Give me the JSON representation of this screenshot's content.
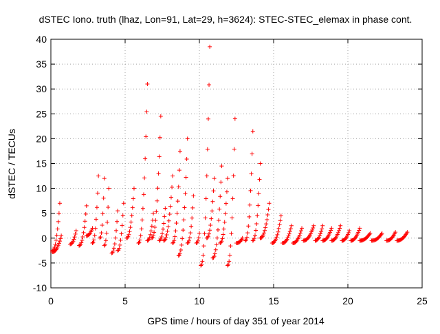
{
  "chart_data": {
    "type": "scatter",
    "title": "dSTEC Iono. truth (lhaz, Lon=91, Lat=29, h=3624): STEC-STEC_elemax in phase cont.",
    "xlabel": "GPS time / hours of day 351 of year 2014",
    "ylabel": "dSTEC  / TECUs",
    "xlim": [
      0,
      25
    ],
    "ylim": [
      -10,
      40
    ],
    "x_ticks": [
      0,
      5,
      10,
      15,
      20,
      25
    ],
    "x_tick_labels": [
      "0",
      "5",
      "10",
      "15",
      "20",
      "25"
    ],
    "y_ticks": [
      -10,
      -5,
      0,
      5,
      10,
      15,
      20,
      25,
      30,
      35,
      40
    ],
    "y_tick_labels": [
      "-10",
      "-5",
      "0",
      "5",
      "10",
      "15",
      "20",
      "25",
      "30",
      "35",
      "40"
    ],
    "grid": true,
    "marker": "plus",
    "marker_color": "#ff0000",
    "point_spacing_hours": 0.05,
    "series": [
      {
        "arcs": [
          {
            "x": [
              0.1,
              0.6
            ],
            "y": [
              -2.5,
              7
            ]
          },
          {
            "x": [
              0.1,
              0.7
            ],
            "y": [
              -2.8,
              0.5
            ]
          },
          {
            "x": [
              1.3,
              1.7
            ],
            "y": [
              -1.2,
              1.5
            ]
          },
          {
            "x": [
              1.9,
              2.4
            ],
            "y": [
              -1.5,
              6.5
            ]
          },
          {
            "x": [
              2.4,
              2.8
            ],
            "y": [
              0.5,
              2
            ]
          },
          {
            "x": [
              2.8,
              3.2
            ],
            "y": [
              -1,
              12.5
            ]
          },
          {
            "x": [
              3.3,
              3.6
            ],
            "y": [
              0,
              12
            ]
          },
          {
            "x": [
              3.6,
              3.9
            ],
            "y": [
              -1.5,
              10
            ]
          },
          {
            "x": [
              4.1,
              4.5
            ],
            "y": [
              -3,
              5.5
            ]
          },
          {
            "x": [
              4.5,
              4.9
            ],
            "y": [
              -2.5,
              7
            ]
          },
          {
            "x": [
              5.1,
              5.6
            ],
            "y": [
              0,
              10
            ]
          },
          {
            "x": [
              5.9,
              6.5
            ],
            "y": [
              -1,
              31
            ]
          },
          {
            "x": [
              6.5,
              6.9
            ],
            "y": [
              -0.5,
              5
            ]
          },
          {
            "x": [
              6.8,
              7.4
            ],
            "y": [
              0,
              24.5
            ]
          },
          {
            "x": [
              7.3,
              7.7
            ],
            "y": [
              -0.5,
              6
            ]
          },
          {
            "x": [
              7.6,
              8.2
            ],
            "y": [
              -0.5,
              12.5
            ]
          },
          {
            "x": [
              8.2,
              8.7
            ],
            "y": [
              -1,
              17.5
            ]
          },
          {
            "x": [
              8.6,
              9.2
            ],
            "y": [
              -3.5,
              20
            ]
          },
          {
            "x": [
              9.2,
              9.6
            ],
            "y": [
              -1,
              8.5
            ]
          },
          {
            "x": [
              9.8,
              10.0
            ],
            "y": [
              -1,
              1
            ]
          },
          {
            "x": [
              10.1,
              10.7
            ],
            "y": [
              -5.5,
              38.5
            ]
          },
          {
            "x": [
              10.5,
              11.0
            ],
            "y": [
              0,
              12
            ]
          },
          {
            "x": [
              10.9,
              11.5
            ],
            "y": [
              -4,
              14.5
            ]
          },
          {
            "x": [
              11.4,
              11.9
            ],
            "y": [
              -1,
              12
            ]
          },
          {
            "x": [
              11.9,
              12.4
            ],
            "y": [
              -5.5,
              24
            ]
          },
          {
            "x": [
              12.5,
              12.9
            ],
            "y": [
              -1,
              0
            ]
          },
          {
            "x": [
              13.1,
              13.6
            ],
            "y": [
              -0.5,
              21.5
            ]
          },
          {
            "x": [
              13.6,
              14.1
            ],
            "y": [
              -0.5,
              15
            ]
          },
          {
            "x": [
              14.1,
              14.7
            ],
            "y": [
              0,
              7
            ]
          },
          {
            "x": [
              14.9,
              15.5
            ],
            "y": [
              -1,
              4.5
            ]
          },
          {
            "x": [
              15.6,
              16.2
            ],
            "y": [
              -1,
              2.5
            ]
          },
          {
            "x": [
              16.3,
              16.9
            ],
            "y": [
              -1,
              2
            ]
          },
          {
            "x": [
              17.0,
              17.7
            ],
            "y": [
              -0.5,
              2.5
            ]
          },
          {
            "x": [
              17.8,
              18.3
            ],
            "y": [
              -0.5,
              2.5
            ]
          },
          {
            "x": [
              18.3,
              18.9
            ],
            "y": [
              -0.5,
              2
            ]
          },
          {
            "x": [
              18.9,
              19.5
            ],
            "y": [
              -0.5,
              2.5
            ]
          },
          {
            "x": [
              19.6,
              20.1
            ],
            "y": [
              -0.5,
              1.5
            ]
          },
          {
            "x": [
              20.2,
              20.8
            ],
            "y": [
              -0.5,
              2
            ]
          },
          {
            "x": [
              20.8,
              21.5
            ],
            "y": [
              -0.5,
              1
            ]
          },
          {
            "x": [
              21.6,
              22.3
            ],
            "y": [
              -0.5,
              1
            ]
          },
          {
            "x": [
              22.6,
              23.2
            ],
            "y": [
              -0.5,
              1.2
            ]
          },
          {
            "x": [
              23.3,
              24.0
            ],
            "y": [
              -0.5,
              1.2
            ]
          }
        ]
      }
    ]
  }
}
